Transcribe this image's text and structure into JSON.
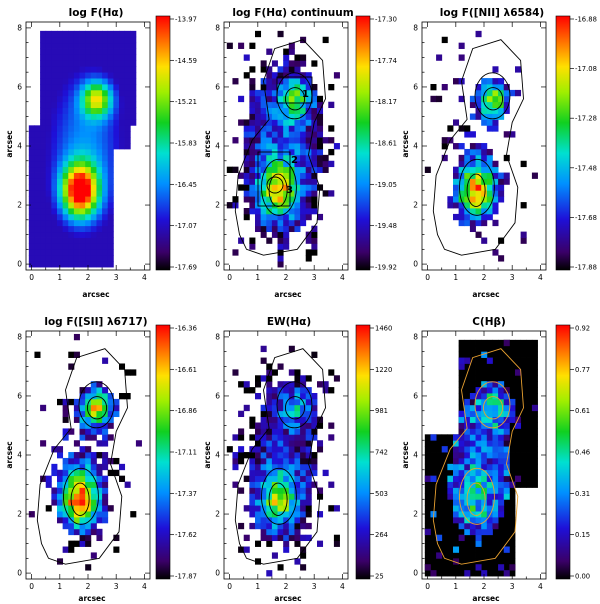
{
  "figure": {
    "panels": [
      {
        "title": "log F(Hα)",
        "xlabel": "arcsec",
        "ylabel": "arcsec",
        "colorbar": {
          "labels": [
            "-13.97",
            "-14.59",
            "-15.21",
            "-15.83",
            "-16.45",
            "-17.07",
            "-17.69"
          ]
        }
      },
      {
        "title": "log F(Hα) continuum",
        "xlabel": "arcsec",
        "ylabel": "arcsec",
        "colorbar": {
          "labels": [
            "-17.30",
            "-17.74",
            "-18.17",
            "-18.61",
            "-19.05",
            "-19.48",
            "-19.92"
          ]
        },
        "apertures": [
          "1",
          "2",
          "3"
        ]
      },
      {
        "title": "log F([NII] λ6584)",
        "xlabel": "arcsec",
        "ylabel": "arcsec",
        "colorbar": {
          "labels": [
            "-16.88",
            "-17.08",
            "-17.28",
            "-17.48",
            "-17.68",
            "-17.88"
          ]
        }
      },
      {
        "title": "log F([SII] λ6717)",
        "xlabel": "arcsec",
        "ylabel": "arcsec",
        "colorbar": {
          "labels": [
            "-16.36",
            "-16.61",
            "-16.86",
            "-17.11",
            "-17.37",
            "-17.62",
            "-17.87"
          ]
        }
      },
      {
        "title": "EW(Hα)",
        "xlabel": "arcsec",
        "ylabel": "arcsec",
        "colorbar": {
          "labels": [
            "1460",
            "1220",
            "981",
            "742",
            "503",
            "264",
            "25"
          ]
        }
      },
      {
        "title": "C(Hβ)",
        "xlabel": "arcsec",
        "ylabel": "arcsec",
        "colorbar": {
          "labels": [
            "0.92",
            "0.77",
            "0.61",
            "0.46",
            "0.31",
            "0.15",
            "0.00"
          ]
        }
      }
    ]
  },
  "chart_data": [
    {
      "type": "heatmap",
      "title": "log F(Hα)",
      "xlabel": "arcsec",
      "ylabel": "arcsec",
      "xlim": [
        -0.2,
        4.2
      ],
      "ylim": [
        -0.2,
        8.2
      ],
      "x_ticks": [
        0,
        1,
        2,
        3,
        4
      ],
      "y_ticks": [
        0,
        2,
        4,
        6,
        8
      ],
      "colorbar": [
        -13.97,
        -14.59,
        -15.21,
        -15.83,
        -16.45,
        -17.07,
        -17.69
      ],
      "peaks": [
        {
          "x": 1.7,
          "y": 2.5
        },
        {
          "x": 2.3,
          "y": 5.6
        }
      ],
      "contours": false
    },
    {
      "type": "heatmap",
      "title": "log F(Hα) continuum",
      "xlabel": "arcsec",
      "ylabel": "arcsec",
      "xlim": [
        -0.2,
        4.2
      ],
      "ylim": [
        -0.2,
        8.2
      ],
      "x_ticks": [
        0,
        1,
        2,
        3,
        4
      ],
      "y_ticks": [
        0,
        2,
        4,
        6,
        8
      ],
      "colorbar": [
        -17.3,
        -17.74,
        -18.17,
        -18.61,
        -19.05,
        -19.48,
        -19.92
      ],
      "peaks": [
        {
          "x": 1.7,
          "y": 2.5
        },
        {
          "x": 2.3,
          "y": 5.6
        }
      ],
      "contours": true,
      "annotations": [
        "1",
        "2",
        "3"
      ]
    },
    {
      "type": "heatmap",
      "title": "log F([NII] λ6584)",
      "xlabel": "arcsec",
      "ylabel": "arcsec",
      "xlim": [
        -0.2,
        4.2
      ],
      "ylim": [
        -0.2,
        8.2
      ],
      "x_ticks": [
        0,
        1,
        2,
        3,
        4
      ],
      "y_ticks": [
        0,
        2,
        4,
        6,
        8
      ],
      "colorbar": [
        -16.88,
        -17.08,
        -17.28,
        -17.48,
        -17.68,
        -17.88
      ],
      "peaks": [
        {
          "x": 1.7,
          "y": 2.5
        },
        {
          "x": 2.3,
          "y": 5.6
        }
      ],
      "contours": true
    },
    {
      "type": "heatmap",
      "title": "log F([SII] λ6717)",
      "xlabel": "arcsec",
      "ylabel": "arcsec",
      "xlim": [
        -0.2,
        4.2
      ],
      "ylim": [
        -0.2,
        8.2
      ],
      "x_ticks": [
        0,
        1,
        2,
        3,
        4
      ],
      "y_ticks": [
        0,
        2,
        4,
        6,
        8
      ],
      "colorbar": [
        -16.36,
        -16.61,
        -16.86,
        -17.11,
        -17.37,
        -17.62,
        -17.87
      ],
      "peaks": [
        {
          "x": 1.7,
          "y": 2.5
        },
        {
          "x": 2.3,
          "y": 5.6
        }
      ],
      "contours": true
    },
    {
      "type": "heatmap",
      "title": "EW(Hα)",
      "xlabel": "arcsec",
      "ylabel": "arcsec",
      "xlim": [
        -0.2,
        4.2
      ],
      "ylim": [
        -0.2,
        8.2
      ],
      "x_ticks": [
        0,
        1,
        2,
        3,
        4
      ],
      "y_ticks": [
        0,
        2,
        4,
        6,
        8
      ],
      "colorbar": [
        1460,
        1220,
        981,
        742,
        503,
        264,
        25
      ],
      "peaks": [
        {
          "x": 1.7,
          "y": 2.5
        },
        {
          "x": 2.3,
          "y": 5.6
        }
      ],
      "contours": true
    },
    {
      "type": "heatmap",
      "title": "C(Hβ)",
      "xlabel": "arcsec",
      "ylabel": "arcsec",
      "xlim": [
        -0.2,
        4.2
      ],
      "ylim": [
        -0.2,
        8.2
      ],
      "x_ticks": [
        0,
        1,
        2,
        3,
        4
      ],
      "y_ticks": [
        0,
        2,
        4,
        6,
        8
      ],
      "colorbar": [
        0.92,
        0.77,
        0.61,
        0.46,
        0.31,
        0.15,
        0.0
      ],
      "peaks": [
        {
          "x": 1.7,
          "y": 2.5
        },
        {
          "x": 2.3,
          "y": 5.6
        }
      ],
      "contours": true,
      "background": "#000000",
      "contour_color": "#e8a030"
    }
  ]
}
